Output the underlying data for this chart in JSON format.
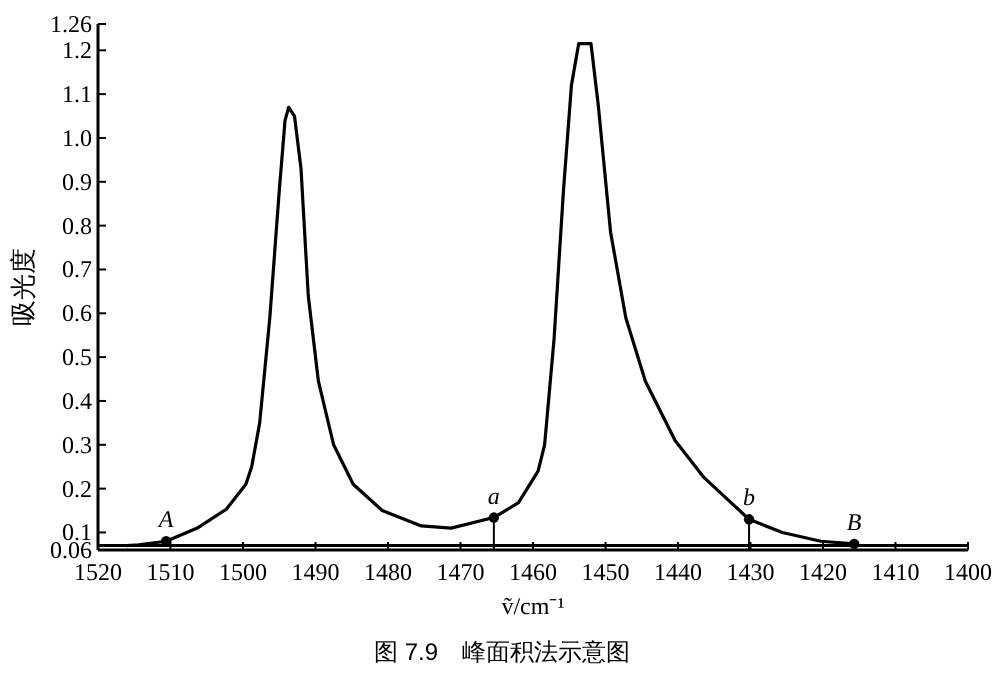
{
  "chart_data": {
    "type": "line",
    "xlabel": "ṽ/cm⁻¹",
    "ylabel": "吸光度",
    "xlim": [
      1520,
      1400
    ],
    "xticks": [
      1520,
      1510,
      1500,
      1490,
      1480,
      1470,
      1460,
      1450,
      1440,
      1430,
      1420,
      1410,
      1400
    ],
    "ylim": [
      0.06,
      1.26
    ],
    "yticks": [
      0.06,
      0.1,
      0.2,
      0.3,
      0.4,
      0.5,
      0.6,
      0.7,
      0.8,
      0.9,
      {
        "value": 1,
        "label": "1.0"
      },
      1.1,
      1.2,
      1.26
    ],
    "ref_lines": [
      {
        "axis": "y",
        "value": 0.07,
        "color": "#000000"
      }
    ],
    "series": [
      {
        "color": "#000000",
        "x": [
          1516,
          1514.4,
          1510.6,
          1506.3,
          1502.3,
          1499.6,
          1498.8,
          1497.7,
          1496.3,
          1495,
          1494.2,
          1493.7,
          1492.9,
          1492,
          1491,
          1489.6,
          1487.5,
          1484.8,
          1480.8,
          1475.4,
          1471.3,
          1465.4,
          1462,
          1459.3,
          1458.4,
          1457.1,
          1455.8,
          1454.7,
          1453.7,
          1452,
          1451,
          1449.3,
          1447.2,
          1444.5,
          1440.4,
          1436.4,
          1430.2,
          1425.6,
          1420.3,
          1415.7
        ],
        "values": [
          0.07,
          0.072,
          0.08,
          0.11,
          0.153,
          0.21,
          0.25,
          0.35,
          0.59,
          0.88,
          1.04,
          1.07,
          1.05,
          0.93,
          0.64,
          0.445,
          0.3,
          0.21,
          0.15,
          0.115,
          0.11,
          0.134,
          0.168,
          0.24,
          0.3,
          0.54,
          0.88,
          1.12,
          1.215,
          1.215,
          1.075,
          0.785,
          0.59,
          0.445,
          0.31,
          0.225,
          0.13,
          0.1,
          0.08,
          0.074
        ]
      },
      {
        "type": "scatter",
        "color": "#000000",
        "marker": "circle",
        "x": [
          1510.6,
          1415.7
        ],
        "values": [
          0.08,
          0.074
        ]
      },
      {
        "type": "lollipop",
        "color": "#000000",
        "marker": "circle",
        "x": [
          1465.4,
          1430.2
        ],
        "values": [
          0.134,
          0.13
        ]
      }
    ],
    "annotations": [
      {
        "text": "A",
        "x": 1510.6,
        "y": 0.08
      },
      {
        "text": "a",
        "x": 1465.4,
        "y": 0.134
      },
      {
        "text": "b",
        "x": 1430.2,
        "y": 0.13
      },
      {
        "text": "B",
        "x": 1415.7,
        "y": 0.074
      },
      "图 7.9　峰面积法示意图"
    ]
  }
}
